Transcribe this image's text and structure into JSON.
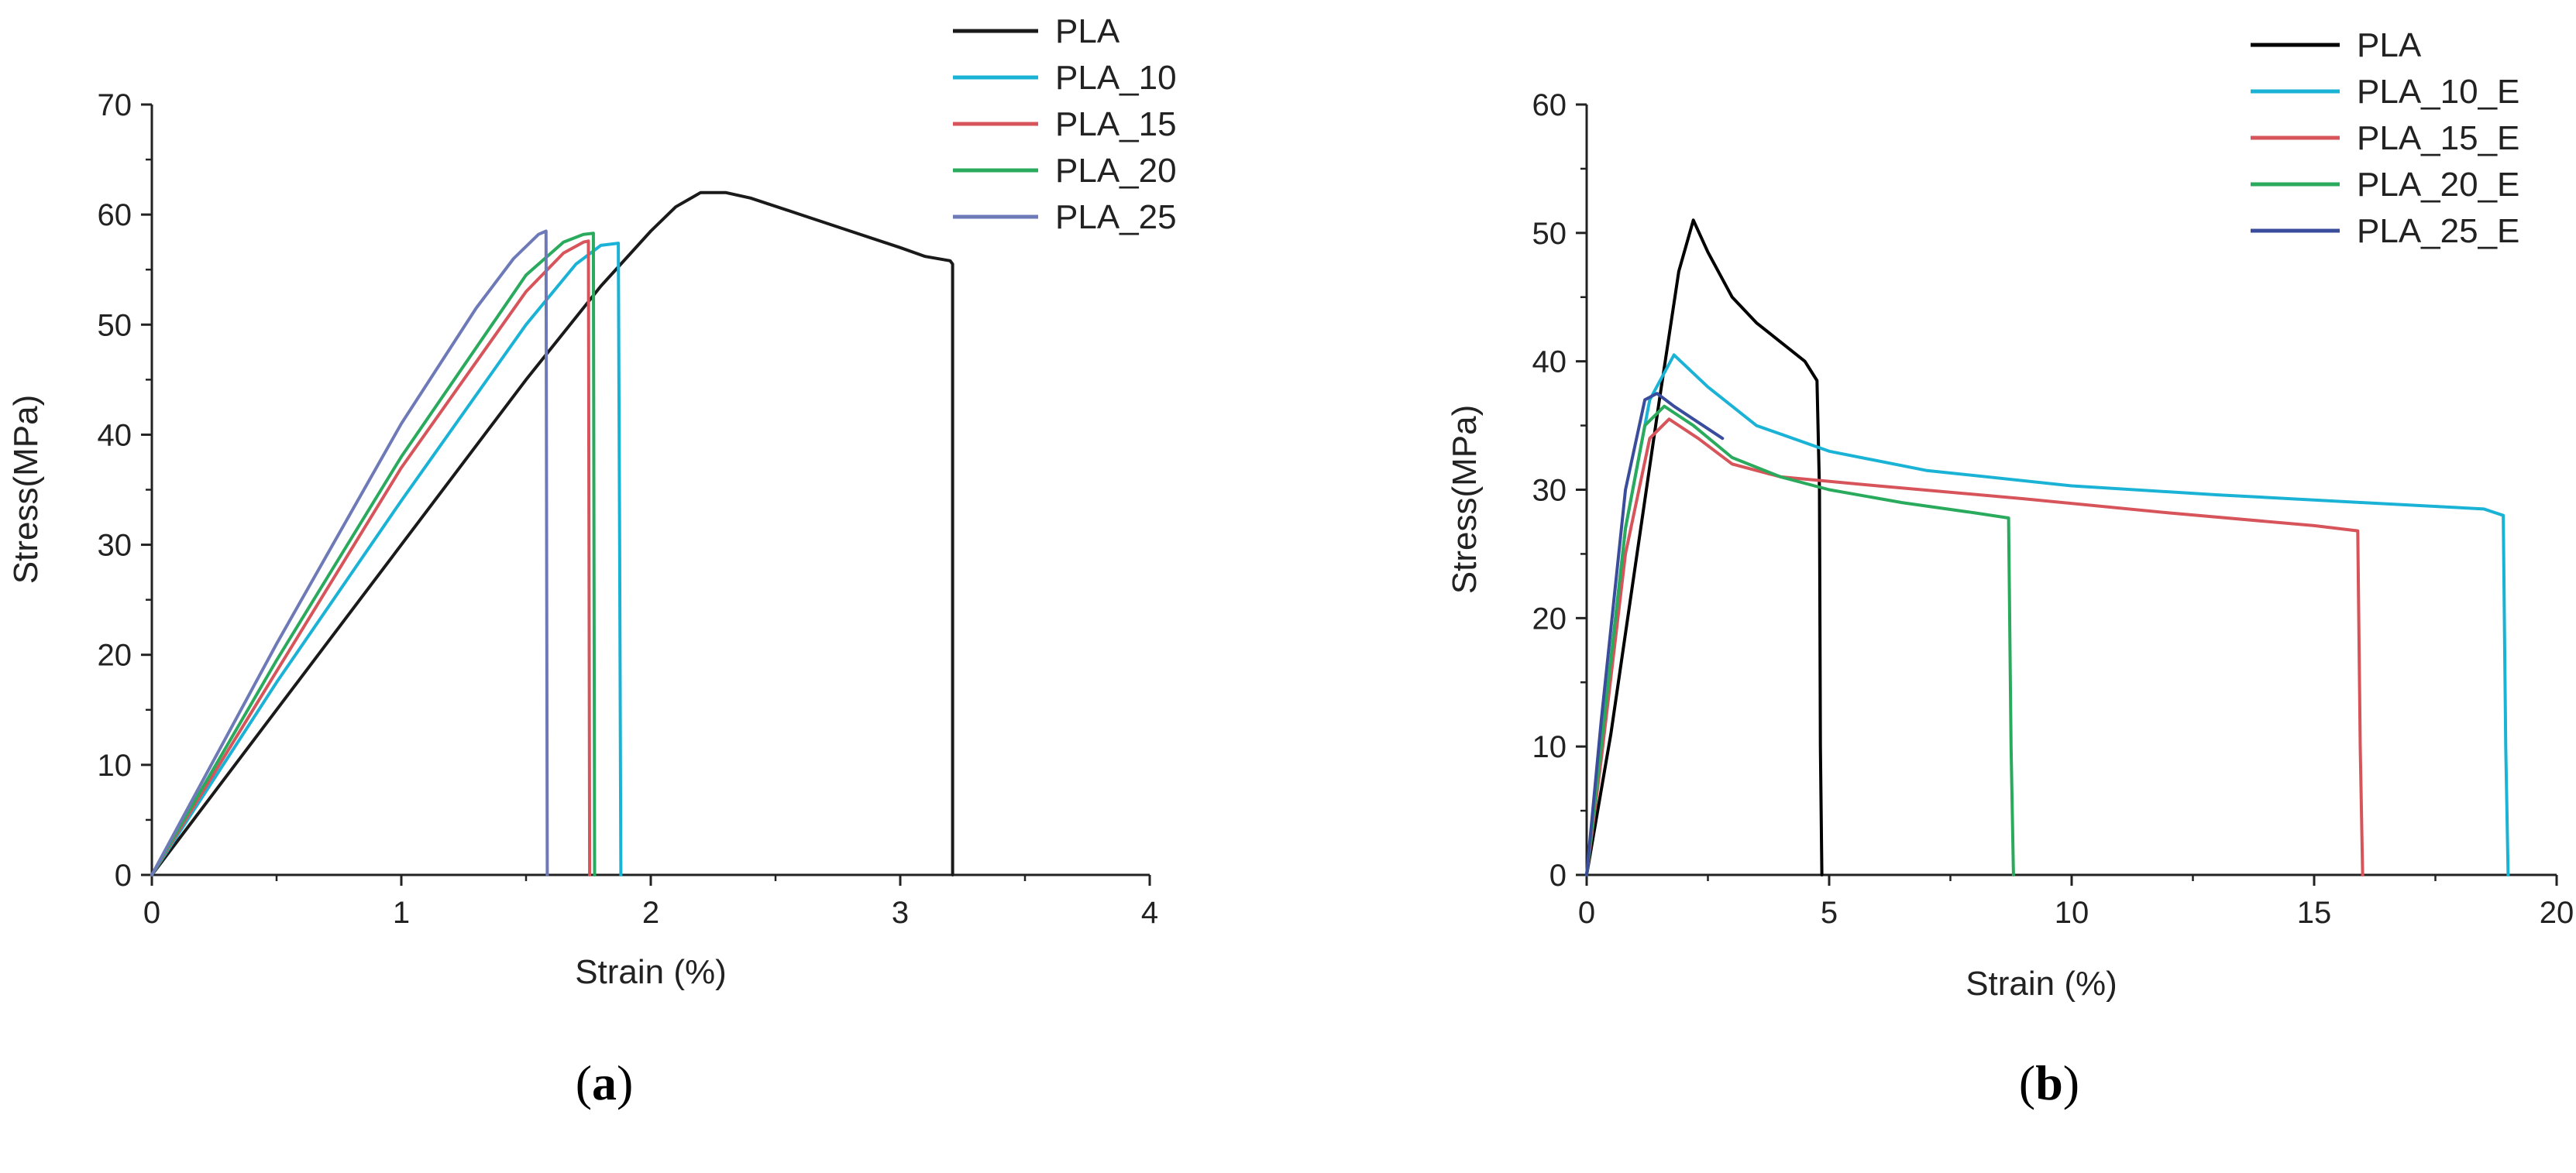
{
  "charts": [
    {
      "caption": "a",
      "chart_data": {
        "type": "line",
        "title": "",
        "xlabel": "Strain (%)",
        "ylabel": "Stress(MPa)",
        "xlim": [
          0,
          4
        ],
        "ylim": [
          0,
          70
        ],
        "xticks": [
          0,
          1,
          2,
          3,
          4
        ],
        "yticks": [
          0,
          10,
          20,
          30,
          40,
          50,
          60,
          70
        ],
        "legend_position": "top-right",
        "series": [
          {
            "name": "PLA",
            "color": "#1a1a1a",
            "x": [
              0,
              0.5,
              1.0,
              1.5,
              1.8,
              2.0,
              2.1,
              2.2,
              2.3,
              2.4,
              2.6,
              2.8,
              3.0,
              3.1,
              3.2,
              3.21,
              3.21
            ],
            "y": [
              0,
              15,
              30,
              45,
              53.5,
              58.5,
              60.7,
              62,
              62,
              61.5,
              60,
              58.5,
              57,
              56.2,
              55.8,
              55.5,
              0
            ]
          },
          {
            "name": "PLA_10",
            "color": "#1ab3d6",
            "x": [
              0,
              0.5,
              1.0,
              1.5,
              1.7,
              1.8,
              1.87,
              1.875,
              1.88
            ],
            "y": [
              0,
              17.5,
              34,
              50,
              55.5,
              57.2,
              57.4,
              30,
              0
            ]
          },
          {
            "name": "PLA_15",
            "color": "#d6545a",
            "x": [
              0,
              0.5,
              1.0,
              1.5,
              1.65,
              1.73,
              1.75,
              1.755
            ],
            "y": [
              0,
              18.5,
              37,
              53,
              56.5,
              57.5,
              57.6,
              0
            ]
          },
          {
            "name": "PLA_20",
            "color": "#2aaa5c",
            "x": [
              0,
              0.5,
              1.0,
              1.5,
              1.65,
              1.73,
              1.77,
              1.775
            ],
            "y": [
              0,
              19.5,
              38,
              54.5,
              57.5,
              58.2,
              58.3,
              0
            ]
          },
          {
            "name": "PLA_25",
            "color": "#6e79b8",
            "x": [
              0,
              0.5,
              1.0,
              1.3,
              1.45,
              1.55,
              1.58,
              1.585
            ],
            "y": [
              0,
              21,
              41,
              51.5,
              56,
              58.2,
              58.5,
              0
            ]
          }
        ]
      }
    },
    {
      "caption": "b",
      "chart_data": {
        "type": "line",
        "title": "",
        "xlabel": "Strain (%)",
        "ylabel": "Stress(MPa)",
        "xlim": [
          0,
          20
        ],
        "ylim": [
          0,
          60
        ],
        "xticks": [
          0,
          5,
          10,
          15,
          20
        ],
        "yticks": [
          0,
          10,
          20,
          30,
          40,
          50,
          60
        ],
        "legend_position": "top-right",
        "series": [
          {
            "name": "PLA",
            "color": "#000000",
            "x": [
              0,
              0.5,
              1.0,
              1.5,
              1.9,
              2.2,
              2.5,
              3.0,
              3.5,
              4.0,
              4.5,
              4.75,
              4.8,
              4.82,
              4.85
            ],
            "y": [
              0,
              11,
              24,
              37,
              47,
              51,
              48.5,
              45,
              43,
              41.5,
              40,
              38.5,
              30,
              10,
              0
            ]
          },
          {
            "name": "PLA_10_E",
            "color": "#1ab3d6",
            "x": [
              0,
              0.3,
              0.8,
              1.3,
              1.8,
              2.5,
              3.5,
              5,
              7,
              10,
              13,
              16,
              18.5,
              18.9,
              18.95,
              19.0
            ],
            "y": [
              0,
              10,
              27,
              37,
              40.5,
              38,
              35,
              33,
              31.5,
              30.3,
              29.6,
              29,
              28.5,
              28,
              10,
              0
            ]
          },
          {
            "name": "PLA_15_E",
            "color": "#d6545a",
            "x": [
              0,
              0.3,
              0.8,
              1.3,
              1.7,
              2.3,
              3.0,
              4.0,
              6,
              9,
              12,
              15,
              15.9,
              15.95,
              16.0
            ],
            "y": [
              0,
              9,
              25,
              34,
              35.5,
              34,
              32,
              31,
              30.3,
              29.3,
              28.2,
              27.2,
              26.8,
              10,
              0
            ]
          },
          {
            "name": "PLA_20_E",
            "color": "#2aaa5c",
            "x": [
              0,
              0.3,
              0.8,
              1.2,
              1.6,
              2.2,
              3.0,
              4.0,
              5.0,
              6.5,
              8.0,
              8.7,
              8.75,
              8.8
            ],
            "y": [
              0,
              10,
              27,
              35,
              36.5,
              35,
              32.5,
              31,
              30,
              29,
              28.2,
              27.8,
              10,
              0
            ]
          },
          {
            "name": "PLA_25_E",
            "color": "#3a4c9c",
            "x": [
              0,
              0.3,
              0.8,
              1.2,
              1.45,
              1.8,
              2.2,
              2.8
            ],
            "y": [
              0,
              12,
              30,
              37,
              37.5,
              36.5,
              35.5,
              34
            ]
          }
        ]
      }
    }
  ]
}
